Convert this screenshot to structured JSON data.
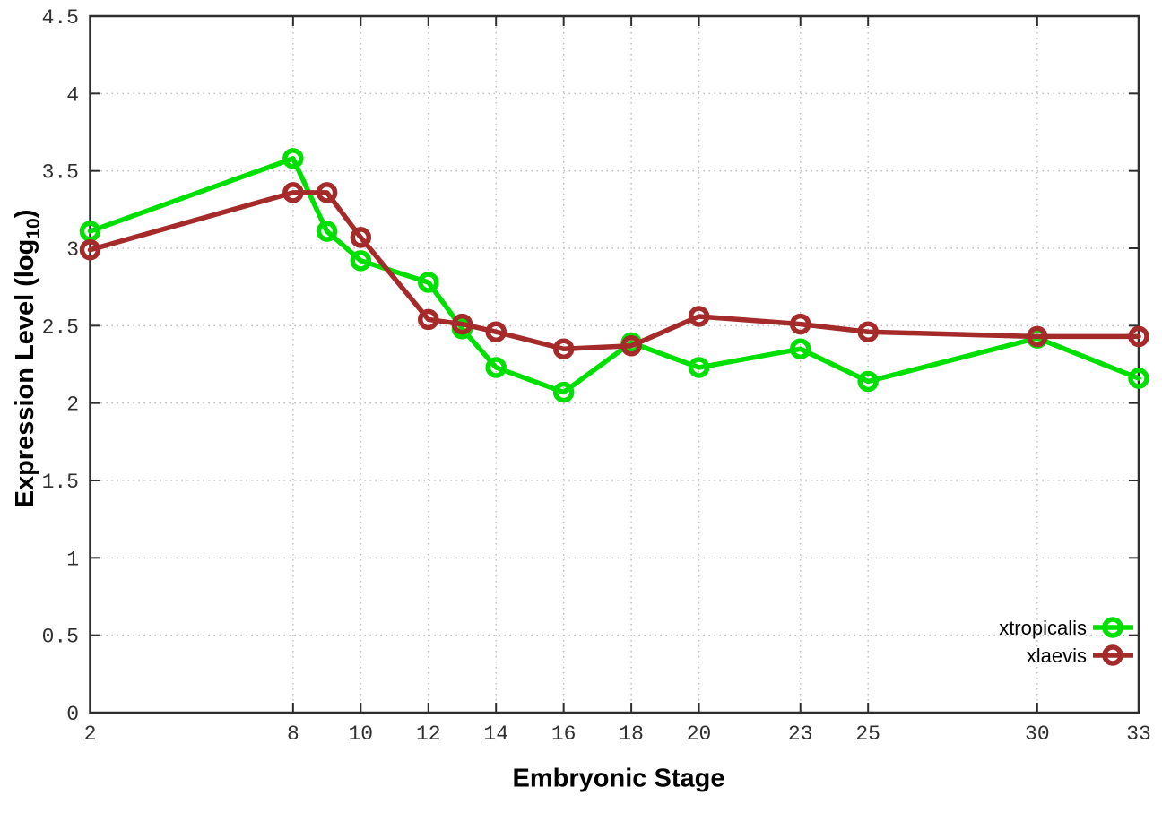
{
  "chart_data": {
    "type": "line",
    "title": "",
    "xlabel": "Embryonic Stage",
    "ylabel": "Expression Level (log10)",
    "ylabel_main": "Expression Level (log",
    "ylabel_sub": "10",
    "ylabel_close": ")",
    "x": [
      2,
      8,
      9,
      10,
      12,
      13,
      14,
      16,
      18,
      20,
      23,
      25,
      30,
      33
    ],
    "xlim": [
      2,
      33
    ],
    "ylim": [
      0,
      4.5
    ],
    "x_ticks": [
      2,
      8,
      10,
      12,
      14,
      16,
      18,
      20,
      23,
      25,
      30,
      33
    ],
    "x_tick_labels": [
      "2",
      "8",
      "10",
      "12",
      "14",
      "16",
      "18",
      "20",
      "23",
      "25",
      "30",
      "33"
    ],
    "y_ticks": [
      0,
      0.5,
      1,
      1.5,
      2,
      2.5,
      3,
      3.5,
      4,
      4.5
    ],
    "y_tick_labels": [
      "0",
      "0.5",
      "1",
      "1.5",
      "2",
      "2.5",
      "3",
      "3.5",
      "4",
      "4.5"
    ],
    "grid": true,
    "legend_position": "inside-bottom-right",
    "series": [
      {
        "name": "xtropicalis",
        "color": "#00e000",
        "marker": "open-circle",
        "values": [
          3.11,
          3.58,
          3.11,
          2.92,
          2.78,
          2.48,
          2.23,
          2.07,
          2.39,
          2.23,
          2.35,
          2.14,
          2.42,
          2.16
        ]
      },
      {
        "name": "xlaevis",
        "color": "#a52a2a",
        "marker": "open-circle",
        "values": [
          2.99,
          3.36,
          3.36,
          3.07,
          2.54,
          2.51,
          2.46,
          2.35,
          2.37,
          2.56,
          2.51,
          2.46,
          2.43,
          2.43
        ]
      }
    ],
    "styles": {
      "background": "#ffffff",
      "border_color": "#2e2e2e",
      "grid_color": "#bdbdbd",
      "tick_label_color": "#303030",
      "legend_text_color": "#000000"
    }
  }
}
